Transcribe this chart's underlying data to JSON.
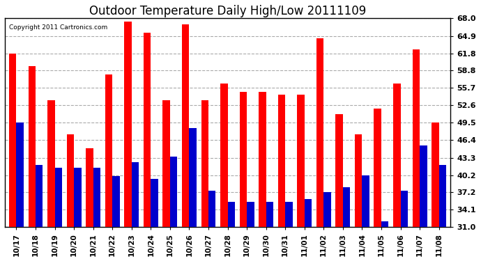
{
  "title": "Outdoor Temperature Daily High/Low 20111109",
  "copyright": "Copyright 2011 Cartronics.com",
  "dates": [
    "10/17",
    "10/18",
    "10/19",
    "10/20",
    "10/21",
    "10/22",
    "10/23",
    "10/24",
    "10/25",
    "10/26",
    "10/27",
    "10/28",
    "10/29",
    "10/30",
    "10/31",
    "11/01",
    "11/02",
    "11/03",
    "11/04",
    "11/05",
    "11/06",
    "11/07",
    "11/08"
  ],
  "highs": [
    61.8,
    59.5,
    53.5,
    47.5,
    45.0,
    58.0,
    67.5,
    65.5,
    53.5,
    67.0,
    53.5,
    56.5,
    55.0,
    55.0,
    54.5,
    54.5,
    64.5,
    51.0,
    47.5,
    52.0,
    56.5,
    62.5,
    49.5
  ],
  "lows": [
    49.5,
    42.0,
    41.5,
    41.5,
    41.5,
    40.0,
    42.5,
    39.5,
    43.5,
    48.5,
    37.5,
    35.5,
    35.5,
    35.5,
    35.5,
    36.0,
    37.2,
    38.0,
    40.2,
    32.0,
    37.5,
    45.5,
    42.0
  ],
  "bar_color_high": "#ff0000",
  "bar_color_low": "#0000cc",
  "background_color": "#ffffff",
  "grid_color": "#aaaaaa",
  "yticks": [
    31.0,
    34.1,
    37.2,
    40.2,
    43.3,
    46.4,
    49.5,
    52.6,
    55.7,
    58.8,
    61.8,
    64.9,
    68.0
  ],
  "ylim": [
    31.0,
    68.0
  ],
  "bar_width": 0.38
}
